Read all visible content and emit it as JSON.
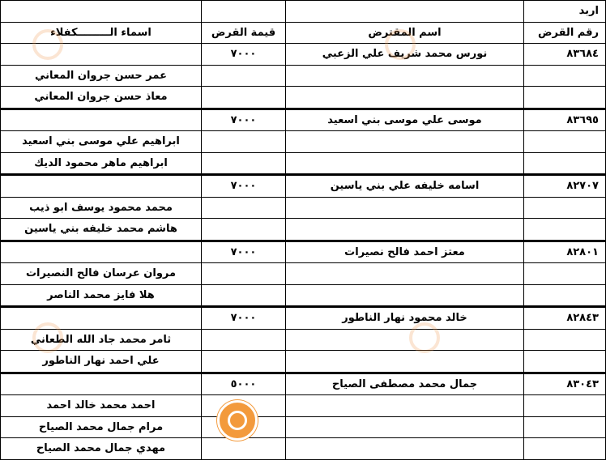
{
  "city": "اربد",
  "headers": {
    "loan_no": "رقم القرض",
    "borrower": "اسم المقترض",
    "amount": "قيمة القرض",
    "guarantors": "اسماء الـــــــــكفلاء"
  },
  "loans": [
    {
      "no": "٨٣٦٨٤",
      "borrower": "نورس محمد شريف علي الزعبي",
      "amount": "٧٠٠٠",
      "guarantors": [
        "عمر حسن جروان المعاني",
        "معاذ حسن جروان المعاني"
      ]
    },
    {
      "no": "٨٣٦٩٥",
      "borrower": "موسى علي موسى بني اسعيد",
      "amount": "٧٠٠٠",
      "guarantors": [
        "ابراهيم علي موسى بني اسعيد",
        "ابراهيم ماهر محمود الديك"
      ]
    },
    {
      "no": "٨٢٧٠٧",
      "borrower": "اسامه خليفه علي بني ياسين",
      "amount": "٧٠٠٠",
      "guarantors": [
        "محمد محمود يوسف ابو ذيب",
        "هاشم محمد خليفه بني ياسين"
      ]
    },
    {
      "no": "٨٢٨٠١",
      "borrower": "معتز احمد فالح نصيرات",
      "amount": "٧٠٠٠",
      "guarantors": [
        "مروان عرسان فالح النصيرات",
        "هلا فايز محمد الناصر"
      ]
    },
    {
      "no": "٨٢٨٤٣",
      "borrower": "خالد محمود نهار الناطور",
      "amount": "٧٠٠٠",
      "guarantors": [
        "ثامر محمد جاد الله الطعاني",
        "علي احمد نهار الناطور"
      ]
    },
    {
      "no": "٨٣٠٤٣",
      "borrower": "جمال محمد مصطفى الصياح",
      "amount": "٥٠٠٠",
      "guarantors": [
        "احمد محمد خالد احمد",
        "مرام جمال محمد الصياح",
        "مهدي جمال محمد الصياح"
      ]
    }
  ]
}
